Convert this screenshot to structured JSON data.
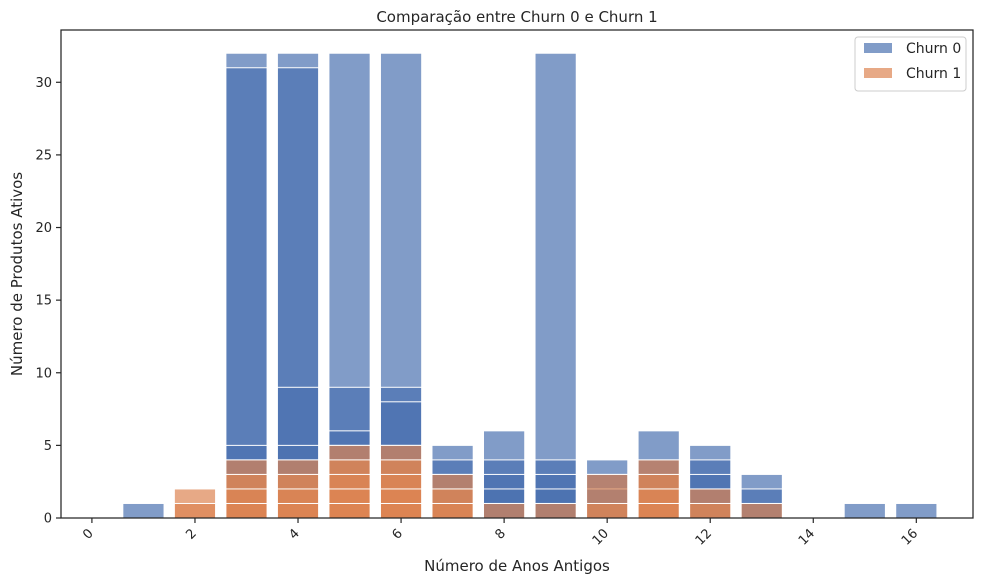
{
  "chart_data": {
    "type": "bar",
    "title": "Comparação entre Churn 0 e Churn 1",
    "xlabel": "Número de Anos Antigos",
    "ylabel": "Número de Produtos Ativos",
    "xlim": [
      -0.6,
      17.1
    ],
    "ylim": [
      0,
      33.6
    ],
    "xticks": [
      0,
      2,
      4,
      6,
      8,
      10,
      12,
      14,
      16
    ],
    "yticks": [
      0,
      5,
      10,
      15,
      20,
      25,
      30
    ],
    "xtick_rotation": 45,
    "grid": false,
    "legend_position": "top-right",
    "bar_width": 0.8,
    "series": [
      {
        "name": "Churn 0",
        "color": "#4c72b0",
        "opacity": 0.7,
        "points": [
          {
            "x": 1,
            "values": [
              1
            ]
          },
          {
            "x": 3,
            "values": [
              1,
              2,
              3,
              4,
              5,
              31,
              32
            ]
          },
          {
            "x": 4,
            "values": [
              1,
              2,
              3,
              4,
              5,
              9,
              31,
              32
            ]
          },
          {
            "x": 5,
            "values": [
              1,
              2,
              3,
              4,
              5,
              6,
              9,
              32
            ]
          },
          {
            "x": 6,
            "values": [
              1,
              2,
              3,
              4,
              5,
              8,
              9,
              32
            ]
          },
          {
            "x": 7,
            "values": [
              1,
              2,
              3,
              4,
              5
            ]
          },
          {
            "x": 8,
            "values": [
              1,
              2,
              3,
              4,
              6
            ]
          },
          {
            "x": 9,
            "values": [
              1,
              2,
              3,
              4,
              32
            ]
          },
          {
            "x": 10,
            "values": [
              1,
              2,
              3,
              4
            ]
          },
          {
            "x": 11,
            "values": [
              1,
              2,
              3,
              4,
              6
            ]
          },
          {
            "x": 12,
            "values": [
              1,
              2,
              3,
              4,
              5
            ]
          },
          {
            "x": 13,
            "values": [
              1,
              2,
              3
            ]
          },
          {
            "x": 15,
            "values": [
              1
            ]
          },
          {
            "x": 16,
            "values": [
              1
            ]
          }
        ]
      },
      {
        "name": "Churn 1",
        "color": "#dd8452",
        "opacity": 0.7,
        "points": [
          {
            "x": 2,
            "values": [
              1,
              2
            ]
          },
          {
            "x": 3,
            "values": [
              1,
              2,
              3,
              4
            ]
          },
          {
            "x": 4,
            "values": [
              1,
              2,
              3,
              4
            ]
          },
          {
            "x": 5,
            "values": [
              1,
              2,
              3,
              4,
              5
            ]
          },
          {
            "x": 6,
            "values": [
              1,
              2,
              3,
              4,
              5
            ]
          },
          {
            "x": 7,
            "values": [
              1,
              2,
              3
            ]
          },
          {
            "x": 8,
            "values": [
              1
            ]
          },
          {
            "x": 9,
            "values": [
              1
            ]
          },
          {
            "x": 10,
            "values": [
              1,
              3
            ]
          },
          {
            "x": 11,
            "values": [
              1,
              2,
              3,
              4
            ]
          },
          {
            "x": 12,
            "values": [
              1,
              2
            ]
          },
          {
            "x": 13,
            "values": [
              1
            ]
          }
        ]
      }
    ]
  }
}
